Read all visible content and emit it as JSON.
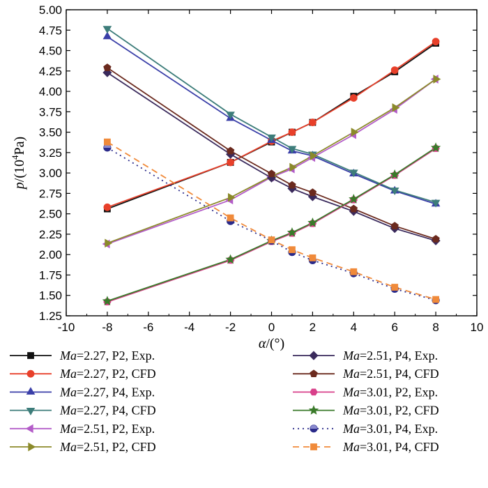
{
  "chart_data": {
    "type": "line",
    "xlabel_symbol": "α",
    "xlabel_unit": "/(°)",
    "ylabel_symbol": "p",
    "ylabel_unit_prefix": "/(10",
    "ylabel_unit_sup": "4",
    "ylabel_unit_suffix": "Pa)",
    "xlim": [
      -10,
      10
    ],
    "ylim": [
      1.25,
      5.0
    ],
    "xticks": [
      "-10",
      "-8",
      "-6",
      "-4",
      "-2",
      "0",
      "2",
      "4",
      "6",
      "8",
      "10"
    ],
    "yticks": [
      "1.25",
      "1.50",
      "1.75",
      "2.00",
      "2.25",
      "2.50",
      "2.75",
      "3.00",
      "3.25",
      "3.50",
      "3.75",
      "4.00",
      "4.25",
      "4.50",
      "4.75",
      "5.00"
    ],
    "x": [
      -8,
      -2,
      0,
      1,
      2,
      4,
      6,
      8
    ],
    "series": [
      {
        "name": "Ma=2.27, P2, Exp.",
        "prefix": "Ma",
        "suffix": "=2.27, P2, Exp.",
        "color": "#111111",
        "marker": "square",
        "dashed": false,
        "values": [
          2.56,
          3.13,
          3.38,
          3.5,
          3.62,
          3.94,
          4.24,
          4.59
        ]
      },
      {
        "name": "Ma=2.27, P2, CFD",
        "prefix": "Ma",
        "suffix": "=2.27, P2, CFD",
        "color": "#e8402a",
        "marker": "circle",
        "dashed": false,
        "values": [
          2.58,
          3.13,
          3.39,
          3.5,
          3.62,
          3.92,
          4.26,
          4.61
        ]
      },
      {
        "name": "Ma=2.27, P4, Exp.",
        "prefix": "Ma",
        "suffix": "=2.27, P4, Exp.",
        "color": "#3a3fa8",
        "marker": "triangle-up",
        "dashed": false,
        "values": [
          4.67,
          3.67,
          3.4,
          3.27,
          3.21,
          2.99,
          2.78,
          2.62
        ]
      },
      {
        "name": "Ma=2.27, P4, CFD",
        "prefix": "Ma",
        "suffix": "=2.27, P4, CFD",
        "color": "#3d7d7a",
        "marker": "triangle-down",
        "dashed": false,
        "values": [
          4.77,
          3.72,
          3.44,
          3.3,
          3.23,
          3.01,
          2.79,
          2.64
        ]
      },
      {
        "name": "Ma=2.51, P2, Exp.",
        "prefix": "Ma",
        "suffix": "=2.51, P2, Exp.",
        "color": "#b35cc8",
        "marker": "triangle-left",
        "dashed": false,
        "values": [
          2.13,
          2.67,
          2.95,
          3.05,
          3.19,
          3.47,
          3.78,
          4.15
        ]
      },
      {
        "name": "Ma=2.51, P2, CFD",
        "prefix": "Ma",
        "suffix": "=2.51, P2, CFD",
        "color": "#8b8a2a",
        "marker": "triangle-right",
        "dashed": false,
        "values": [
          2.14,
          2.7,
          2.96,
          3.07,
          3.21,
          3.5,
          3.8,
          4.15
        ]
      },
      {
        "name": "Ma=2.51, P4, Exp.",
        "prefix": "Ma",
        "suffix": "=2.51, P4, Exp.",
        "color": "#3a2a5c",
        "marker": "diamond",
        "dashed": false,
        "values": [
          4.23,
          3.23,
          2.94,
          2.81,
          2.71,
          2.53,
          2.32,
          2.17
        ]
      },
      {
        "name": "Ma=2.51, P4, CFD",
        "prefix": "Ma",
        "suffix": "=2.51, P4, CFD",
        "color": "#6b2a1e",
        "marker": "pentagon",
        "dashed": false,
        "values": [
          4.29,
          3.27,
          2.99,
          2.85,
          2.76,
          2.56,
          2.35,
          2.19
        ]
      },
      {
        "name": "Ma=3.01, P2, Exp.",
        "prefix": "Ma",
        "suffix": "=3.01, P2, Exp.",
        "color": "#d8408a",
        "marker": "hexagon",
        "dashed": false,
        "values": [
          1.42,
          1.93,
          2.16,
          2.26,
          2.38,
          2.67,
          2.97,
          3.3
        ]
      },
      {
        "name": "Ma=3.01, P2, CFD",
        "prefix": "Ma",
        "suffix": "=3.01, P2, CFD",
        "color": "#3a7a2a",
        "marker": "star",
        "dashed": false,
        "values": [
          1.43,
          1.94,
          2.17,
          2.27,
          2.39,
          2.68,
          2.98,
          3.31
        ]
      },
      {
        "name": "Ma=3.01, P4, Exp.",
        "prefix": "Ma",
        "suffix": "=3.01, P4, Exp.",
        "color": "#2a2a8a",
        "marker": "half-circle",
        "dashed": true,
        "dash": "2,5",
        "values": [
          3.31,
          2.41,
          2.17,
          2.03,
          1.93,
          1.77,
          1.58,
          1.44
        ]
      },
      {
        "name": "Ma=3.01, P4, CFD",
        "prefix": "Ma",
        "suffix": "=3.01, P4, CFD",
        "color": "#f08a3a",
        "marker": "square",
        "dashed": true,
        "dash": "9,6",
        "values": [
          3.38,
          2.45,
          2.18,
          2.06,
          1.96,
          1.79,
          1.6,
          1.45
        ]
      }
    ]
  }
}
